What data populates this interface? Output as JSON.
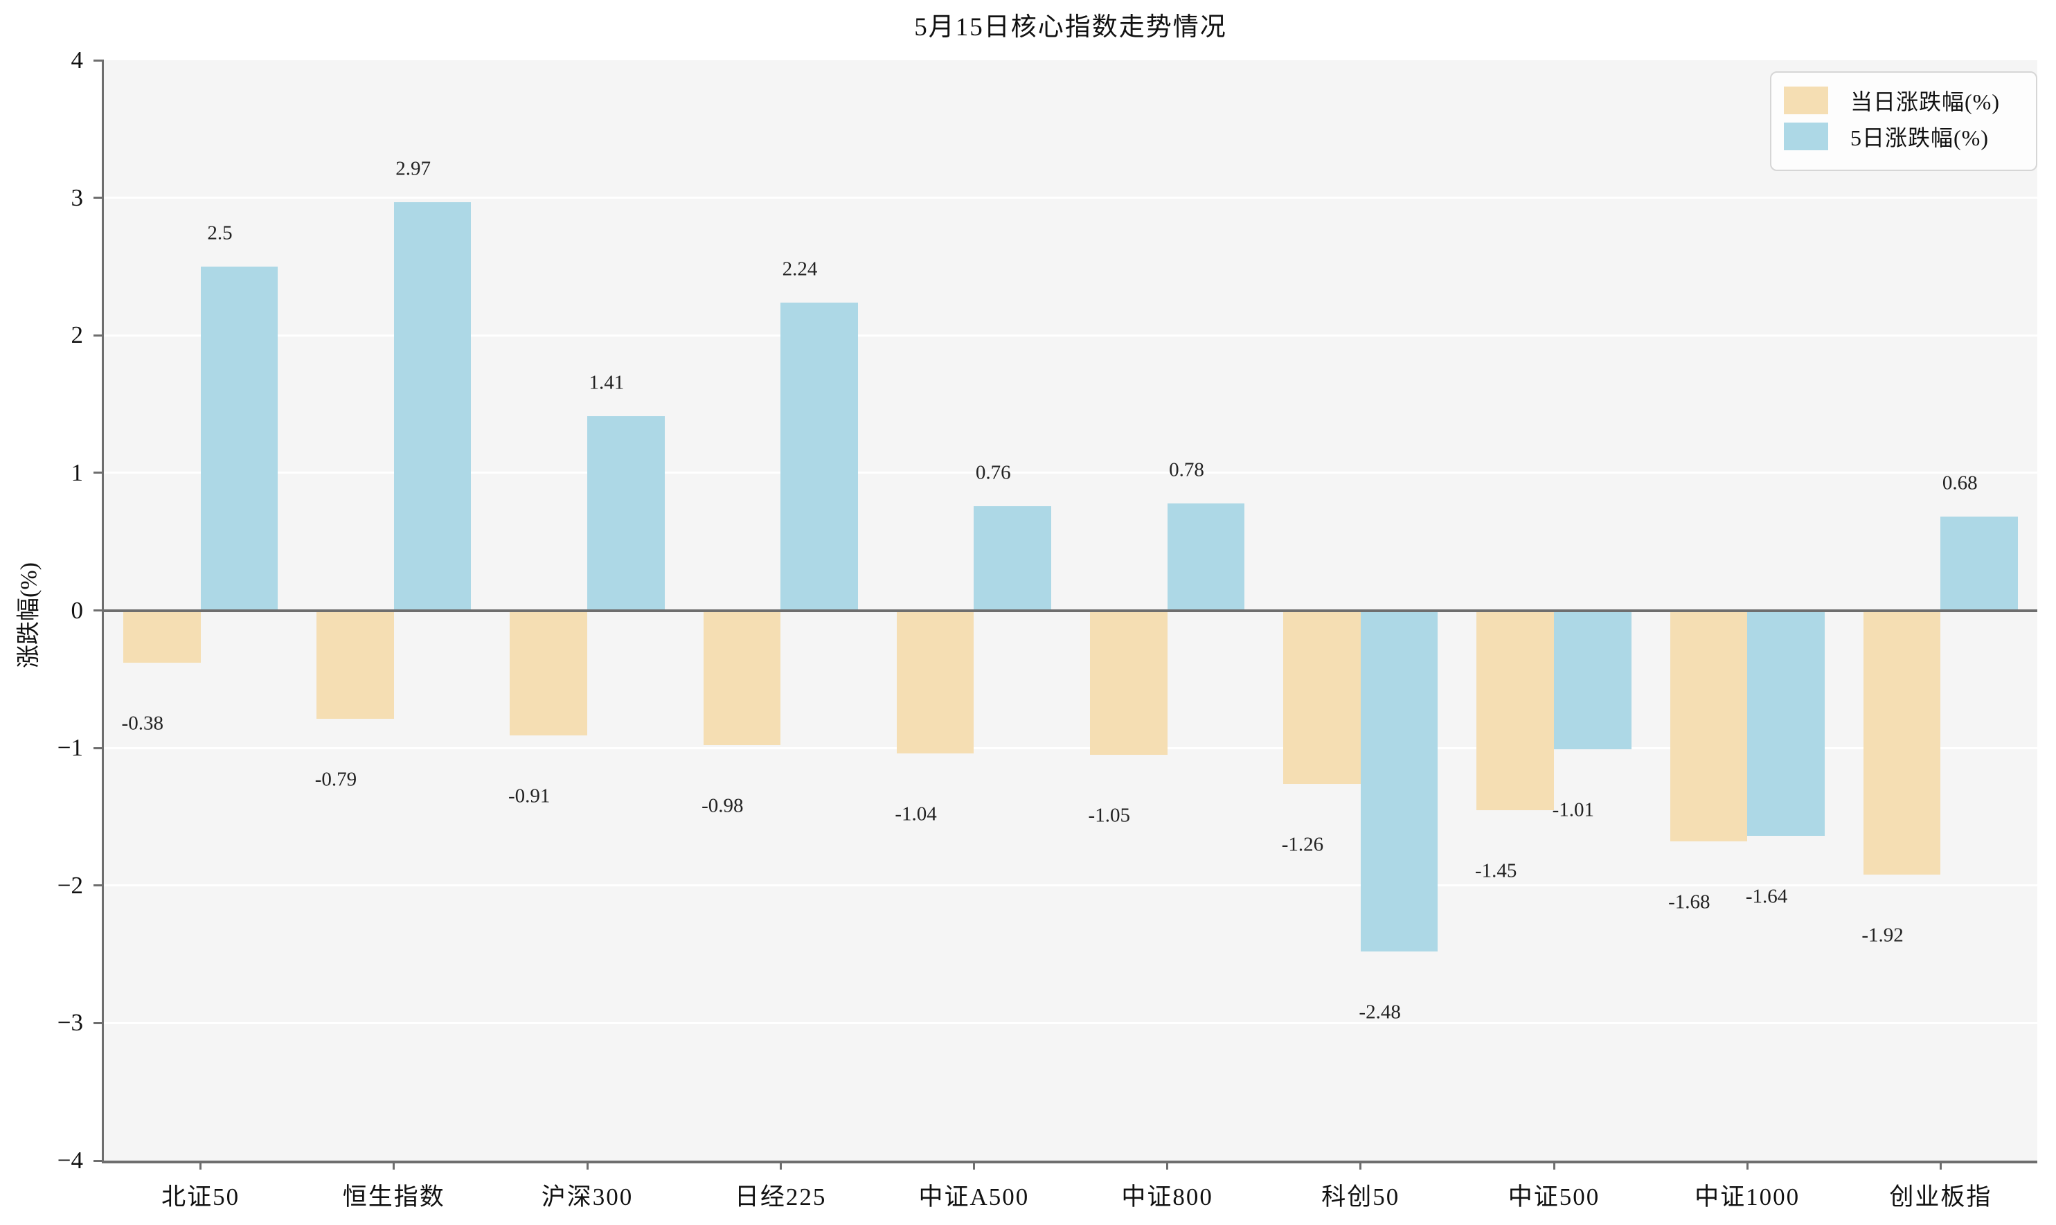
{
  "title": "5月15日核心指数走势情况",
  "chart_data": {
    "type": "bar",
    "title": "5月15日核心指数走势情况",
    "ylabel": "涨跌幅(%)",
    "xlabel": "",
    "ylim": [
      -4,
      4
    ],
    "yticks": [
      -4,
      -3,
      -2,
      -1,
      0,
      1,
      2,
      3,
      4
    ],
    "grid": true,
    "legend_position": "upper right",
    "plot_background": "#f5f5f5",
    "categories": [
      "北证50",
      "恒生指数",
      "沪深300",
      "日经225",
      "中证A500",
      "中证800",
      "科创50",
      "中证500",
      "中证1000",
      "创业板指"
    ],
    "series": [
      {
        "name": "当日涨跌幅(%)",
        "color": "#f5deb3",
        "values": [
          -0.38,
          -0.79,
          -0.91,
          -0.98,
          -1.04,
          -1.05,
          -1.26,
          -1.45,
          -1.68,
          -1.92
        ]
      },
      {
        "name": "5日涨跌幅(%)",
        "color": "#add8e6",
        "values": [
          2.5,
          2.97,
          1.41,
          2.24,
          0.76,
          0.78,
          -2.48,
          -1.01,
          -1.64,
          0.68
        ]
      }
    ]
  },
  "colors": {
    "axis": "#6e6e6e",
    "gridline": "#ffffff",
    "text": "#1a1a1a",
    "legend_border": "#d6d6d6"
  }
}
